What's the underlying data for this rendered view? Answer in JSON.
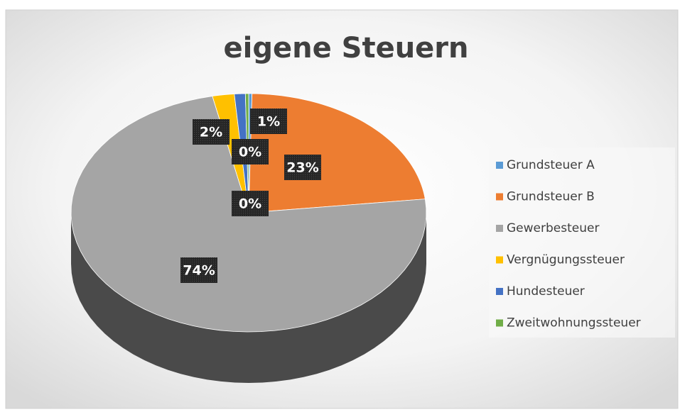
{
  "chart_data": {
    "type": "pie",
    "title": "eigene Steuern",
    "categories": [
      "Grundsteuer A",
      "Grundsteuer B",
      "Gewerbesteuer",
      "Vergnügungssteuer",
      "Hundesteuer",
      "Zweitwohnungssteuer"
    ],
    "values": [
      0.3,
      23,
      74,
      2,
      1,
      0.3
    ],
    "value_labels": [
      "0%",
      "23%",
      "74%",
      "2%",
      "1%",
      "0%"
    ],
    "colors": [
      "#5b9bd5",
      "#ed7d31",
      "#a5a5a5",
      "#ffc000",
      "#4472c4",
      "#70ad47"
    ],
    "legend": "right"
  }
}
